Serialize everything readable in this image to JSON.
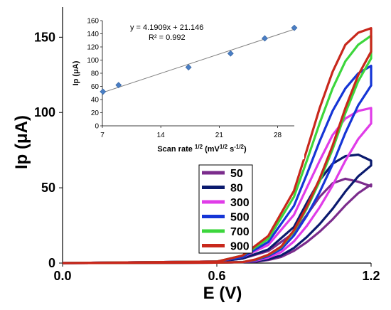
{
  "chart_data": [
    {
      "type": "line",
      "title": "",
      "xlabel": "E (V)",
      "ylabel": "Ip (μA)",
      "xlim": [
        0.0,
        1.2
      ],
      "ylim": [
        0,
        170
      ],
      "xticks": [
        "0.0",
        "0.6",
        "1.2"
      ],
      "yticks": [
        "0",
        "50",
        "100",
        "150"
      ],
      "grid": false,
      "legend_position": "bottom-center",
      "legend": [
        "50",
        "80",
        "300",
        "500",
        "700",
        "900"
      ],
      "series": [
        {
          "name": "50",
          "color": "#7B2C8C",
          "peak_current": 58,
          "curve_x": [
            0.0,
            0.6,
            0.7,
            0.8,
            0.9,
            0.95,
            1.0,
            1.05,
            1.1,
            1.15,
            1.2
          ],
          "curve_y": [
            0,
            1,
            3,
            8,
            20,
            32,
            44,
            53,
            56,
            54,
            51
          ]
        },
        {
          "name": "80",
          "color": "#0A1A6E",
          "peak_current": 72,
          "curve_x": [
            0.0,
            0.6,
            0.7,
            0.8,
            0.9,
            0.95,
            1.0,
            1.05,
            1.1,
            1.15,
            1.2
          ],
          "curve_y": [
            0,
            1,
            3,
            9,
            24,
            40,
            55,
            66,
            71,
            72,
            68
          ]
        },
        {
          "name": "300",
          "color": "#E03CE8",
          "peak_current": 103,
          "curve_x": [
            0.0,
            0.6,
            0.7,
            0.8,
            0.9,
            0.95,
            1.0,
            1.05,
            1.1,
            1.15,
            1.2
          ],
          "curve_y": [
            0,
            1,
            4,
            12,
            32,
            50,
            68,
            85,
            96,
            101,
            103
          ]
        },
        {
          "name": "500",
          "color": "#1535D6",
          "peak_current": 131,
          "curve_x": [
            0.0,
            0.6,
            0.7,
            0.8,
            0.9,
            0.95,
            1.0,
            1.05,
            1.1,
            1.15,
            1.2
          ],
          "curve_y": [
            0,
            1,
            4,
            14,
            38,
            59,
            81,
            101,
            116,
            126,
            131
          ]
        },
        {
          "name": "700",
          "color": "#3CD63C",
          "peak_current": 151,
          "curve_x": [
            0.0,
            0.6,
            0.7,
            0.8,
            0.9,
            0.95,
            1.0,
            1.05,
            1.1,
            1.15,
            1.2
          ],
          "curve_y": [
            0,
            1,
            5,
            16,
            44,
            68,
            93,
            116,
            134,
            145,
            151
          ]
        },
        {
          "name": "900",
          "color": "#C8281C",
          "peak_current": 156,
          "curve_x": [
            0.0,
            0.6,
            0.7,
            0.8,
            0.9,
            0.95,
            1.0,
            1.05,
            1.1,
            1.15,
            1.2
          ],
          "curve_y": [
            0,
            1,
            5,
            18,
            48,
            75,
            103,
            127,
            145,
            153,
            156
          ]
        }
      ]
    },
    {
      "type": "scatter",
      "title": "",
      "xlabel": "Scan rate 1/2 (mV1/2 s-1/2)",
      "ylabel": "Ip (μA)",
      "xlim": [
        7,
        30
      ],
      "ylim": [
        0,
        160
      ],
      "xticks": [
        7,
        14,
        21,
        28
      ],
      "yticks": [
        0,
        20,
        40,
        60,
        80,
        100,
        120,
        140,
        160
      ],
      "annotations": [
        "y = 4.1909x + 21.146",
        "R² = 0.992"
      ],
      "points_x": [
        7.07,
        8.94,
        17.32,
        22.36,
        26.46,
        30.0
      ],
      "points_y": [
        52,
        62,
        89,
        110,
        133,
        149
      ],
      "trendline": {
        "slope": 4.1909,
        "intercept": 21.146
      }
    }
  ]
}
